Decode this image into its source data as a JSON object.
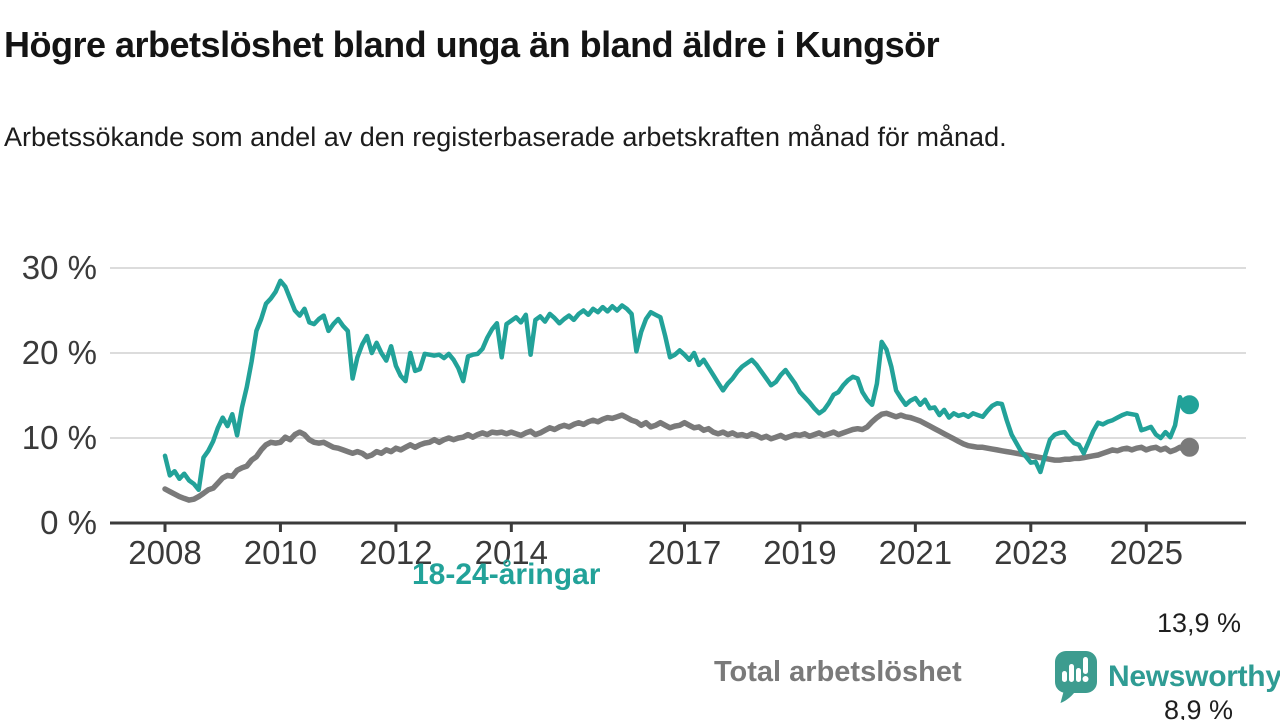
{
  "header": {
    "title": "Högre arbetslöshet bland unga än bland äldre i Kungsör",
    "subtitle": "Arbetssökande som andel av den registerbaserade arbetskraften månad för månad."
  },
  "chart_data": {
    "type": "line",
    "title": "Högre arbetslöshet bland unga än bland äldre i Kungsör",
    "x_unit": "month",
    "x_start": "2008-01",
    "x_end": "2025-10",
    "ylim": [
      0,
      30
    ],
    "grid": "horizontal",
    "legend_position": "inline-labels",
    "colors": {
      "young": "#22a299",
      "total": "#7a7a7a",
      "axis": "#3b3b3b",
      "gridline": "#dcdcdc",
      "brand_teal": "#3d9c8f"
    },
    "yticks": [
      {
        "value": 30,
        "label": "30 %"
      },
      {
        "value": 20,
        "label": "20 %"
      },
      {
        "value": 10,
        "label": "10 %"
      },
      {
        "value": 0,
        "label": "0 %"
      }
    ],
    "xticks": [
      {
        "year": 2008,
        "label": "2008"
      },
      {
        "year": 2010,
        "label": "2010"
      },
      {
        "year": 2012,
        "label": "2012"
      },
      {
        "year": 2014,
        "label": "2014"
      },
      {
        "year": 2017,
        "label": "2017"
      },
      {
        "year": 2019,
        "label": "2019"
      },
      {
        "year": 2021,
        "label": "2021"
      },
      {
        "year": 2023,
        "label": "2023"
      },
      {
        "year": 2025,
        "label": "2025"
      }
    ],
    "series": [
      {
        "name": "18-24-åringar",
        "color": "#22a299",
        "end_label": "13,9 %",
        "end_value": 13.9,
        "values": [
          7.9,
          5.6,
          6.1,
          5.2,
          5.8,
          5.0,
          4.6,
          3.9,
          7.7,
          8.5,
          9.6,
          11.2,
          12.4,
          11.4,
          12.8,
          10.3,
          13.6,
          16.0,
          19.0,
          22.6,
          24.0,
          25.8,
          26.4,
          27.2,
          28.5,
          27.8,
          26.4,
          25.0,
          24.4,
          25.2,
          23.6,
          23.4,
          24.0,
          24.4,
          22.6,
          23.4,
          24.0,
          23.2,
          22.6,
          17.0,
          19.5,
          21.0,
          22.0,
          20.0,
          21.2,
          20.0,
          19.1,
          20.8,
          18.5,
          17.3,
          16.7,
          20.0,
          17.9,
          18.1,
          19.9,
          19.8,
          19.7,
          19.8,
          19.4,
          19.9,
          19.2,
          18.2,
          16.7,
          19.6,
          19.8,
          19.9,
          20.5,
          21.8,
          22.8,
          23.5,
          19.5,
          23.4,
          23.8,
          24.2,
          23.6,
          24.5,
          19.8,
          23.9,
          24.3,
          23.7,
          24.6,
          24.1,
          23.5,
          24.0,
          24.4,
          23.9,
          24.6,
          25.0,
          24.5,
          25.2,
          24.8,
          25.4,
          24.9,
          25.5,
          25.0,
          25.6,
          25.2,
          24.6,
          20.2,
          22.5,
          24.0,
          24.8,
          24.5,
          24.2,
          22.0,
          19.5,
          19.8,
          20.3,
          19.8,
          19.2,
          20.0,
          18.6,
          19.2,
          18.3,
          17.4,
          16.5,
          15.6,
          16.4,
          17.0,
          17.8,
          18.4,
          18.8,
          19.2,
          18.6,
          17.8,
          17.0,
          16.2,
          16.6,
          17.4,
          18.0,
          17.2,
          16.4,
          15.4,
          14.8,
          14.2,
          13.5,
          12.9,
          13.3,
          14.1,
          15.1,
          15.4,
          16.2,
          16.8,
          17.2,
          17.0,
          15.4,
          14.5,
          13.9,
          16.4,
          21.3,
          20.4,
          18.4,
          15.6,
          14.7,
          13.9,
          14.4,
          14.7,
          13.9,
          14.5,
          13.5,
          13.6,
          12.7,
          13.3,
          12.4,
          12.9,
          12.6,
          12.8,
          12.5,
          12.9,
          12.7,
          12.5,
          13.2,
          13.8,
          14.1,
          14.0,
          12.1,
          10.4,
          9.4,
          8.4,
          7.8,
          7.1,
          7.2,
          6.0,
          8.0,
          9.8,
          10.4,
          10.6,
          10.7,
          10.0,
          9.4,
          9.2,
          8.2,
          9.5,
          10.8,
          11.8,
          11.6,
          11.9,
          12.1,
          12.4,
          12.7,
          12.9,
          12.8,
          12.7,
          10.9,
          11.1,
          11.3,
          10.4,
          10.0,
          10.7,
          10.1,
          11.5,
          14.8,
          13.6,
          13.9
        ]
      },
      {
        "name": "Total arbetslöshet",
        "color": "#7a7a7a",
        "end_label": "8,9 %",
        "end_value": 8.9,
        "values": [
          4.0,
          3.7,
          3.4,
          3.1,
          2.9,
          2.7,
          2.8,
          3.1,
          3.5,
          3.9,
          4.1,
          4.7,
          5.3,
          5.6,
          5.5,
          6.2,
          6.5,
          6.7,
          7.4,
          7.8,
          8.6,
          9.2,
          9.5,
          9.4,
          9.5,
          10.1,
          9.8,
          10.4,
          10.7,
          10.4,
          9.8,
          9.5,
          9.4,
          9.5,
          9.2,
          8.9,
          8.8,
          8.6,
          8.4,
          8.2,
          8.4,
          8.2,
          7.8,
          8.0,
          8.4,
          8.2,
          8.6,
          8.4,
          8.8,
          8.6,
          8.9,
          9.2,
          8.9,
          9.2,
          9.4,
          9.5,
          9.8,
          9.5,
          9.8,
          10.0,
          9.8,
          10.0,
          10.1,
          10.4,
          10.1,
          10.4,
          10.6,
          10.4,
          10.7,
          10.6,
          10.7,
          10.5,
          10.7,
          10.5,
          10.3,
          10.6,
          10.8,
          10.4,
          10.6,
          10.9,
          11.2,
          11.0,
          11.3,
          11.5,
          11.3,
          11.6,
          11.8,
          11.6,
          11.9,
          12.1,
          11.9,
          12.2,
          12.4,
          12.3,
          12.5,
          12.7,
          12.4,
          12.1,
          11.9,
          11.5,
          11.8,
          11.3,
          11.5,
          11.8,
          11.5,
          11.2,
          11.4,
          11.5,
          11.8,
          11.5,
          11.2,
          11.3,
          10.9,
          11.1,
          10.7,
          10.5,
          10.7,
          10.4,
          10.6,
          10.3,
          10.4,
          10.2,
          10.5,
          10.3,
          10.0,
          10.2,
          9.9,
          10.1,
          10.3,
          10.0,
          10.2,
          10.4,
          10.3,
          10.5,
          10.2,
          10.4,
          10.6,
          10.3,
          10.5,
          10.7,
          10.4,
          10.6,
          10.8,
          11.0,
          11.1,
          11.0,
          11.3,
          11.9,
          12.4,
          12.8,
          12.9,
          12.7,
          12.5,
          12.7,
          12.5,
          12.4,
          12.2,
          12.0,
          11.7,
          11.4,
          11.1,
          10.8,
          10.5,
          10.2,
          9.9,
          9.6,
          9.3,
          9.1,
          9.0,
          8.9,
          8.9,
          8.8,
          8.7,
          8.6,
          8.5,
          8.4,
          8.3,
          8.2,
          8.1,
          8.0,
          7.9,
          7.8,
          7.7,
          7.6,
          7.5,
          7.4,
          7.4,
          7.5,
          7.5,
          7.6,
          7.6,
          7.7,
          7.8,
          7.9,
          8.0,
          8.2,
          8.4,
          8.6,
          8.5,
          8.7,
          8.8,
          8.6,
          8.8,
          8.9,
          8.6,
          8.8,
          8.9,
          8.6,
          8.8,
          8.4,
          8.6,
          8.9,
          8.6,
          8.9
        ]
      }
    ]
  },
  "footer": {
    "brand": "Newsworthy",
    "logo": "newsworthy-speech-bubble-bar-chart-logo"
  }
}
